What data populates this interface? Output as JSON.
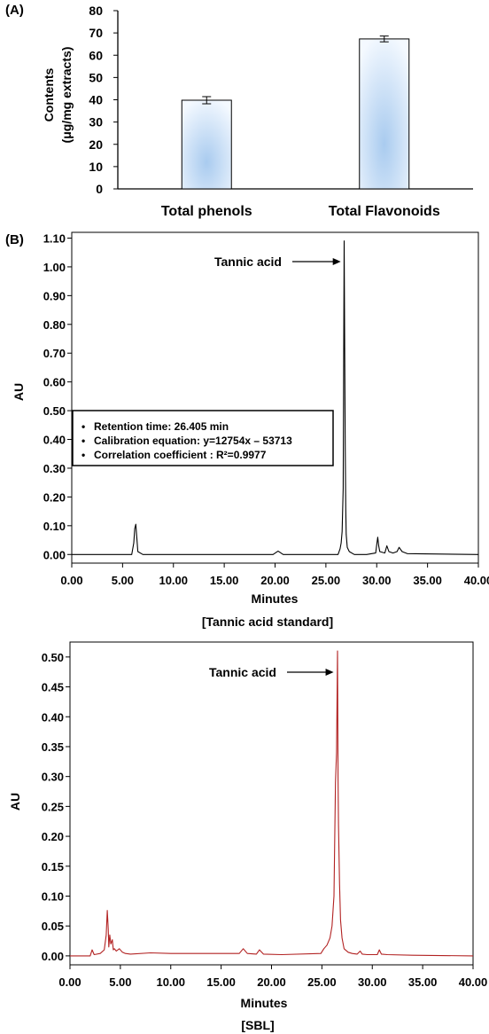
{
  "chart_data": [
    {
      "panel": "(A)",
      "type": "bar",
      "categories": [
        "Total phenols",
        "Total Flavonoids"
      ],
      "values": [
        39.8,
        67.3
      ],
      "errors": [
        1.6,
        1.3
      ],
      "ylabel_line1": "Contents",
      "ylabel_line2": "(μg/mg extracts)",
      "ylim": [
        0,
        80
      ],
      "yticks": [
        "0",
        "10",
        "20",
        "30",
        "40",
        "50",
        "60",
        "70",
        "80"
      ],
      "bar_color": "#cfe2f6",
      "bar_center_color": "#a9cbef"
    },
    {
      "panel": "(B)",
      "type": "line",
      "xlabel": "Minutes",
      "ylabel": "AU",
      "xlim": [
        0,
        40
      ],
      "ylim": [
        -0.03,
        1.12
      ],
      "xticks": [
        "0.00",
        "5.00",
        "10.00",
        "15.00",
        "20.00",
        "25.00",
        "30.00",
        "35.00",
        "40.00"
      ],
      "yticks": [
        "0.00",
        "0.10",
        "0.20",
        "0.30",
        "0.40",
        "0.50",
        "0.60",
        "0.70",
        "0.80",
        "0.90",
        "1.00",
        "1.10"
      ],
      "caption": "[Tannic acid standard]",
      "annotation": "Tannic acid",
      "annotation_x": 26.9,
      "notes": [
        "Retention time: 26.405 min",
        "Calibration equation: y=12754x – 53713",
        "Correlation coefficient : R²=0.9977"
      ],
      "line_color": "#000000",
      "series": [
        {
          "x": [
            0,
            5.9,
            6.1,
            6.2,
            6.3,
            6.4,
            6.5,
            7.0,
            19.8,
            20.3,
            20.8,
            26.2,
            26.4,
            26.5,
            26.6,
            26.7,
            26.75,
            26.8,
            26.85,
            26.9,
            26.95,
            27.0,
            27.1,
            27.3,
            27.8,
            29.0,
            29.9,
            30.0,
            30.1,
            30.2,
            30.3,
            30.8,
            31.0,
            31.2,
            31.6,
            32.0,
            32.2,
            32.5,
            33.0,
            40.0
          ],
          "y": [
            0,
            0,
            0.04,
            0.09,
            0.105,
            0.06,
            0.01,
            0,
            0,
            0.012,
            0,
            0,
            0.02,
            0.04,
            0.08,
            0.23,
            0.7,
            1.09,
            0.72,
            0.38,
            0.16,
            0.07,
            0.025,
            0.01,
            0,
            0,
            0.005,
            0.035,
            0.06,
            0.03,
            0.01,
            0.005,
            0.03,
            0.01,
            0.005,
            0.01,
            0.025,
            0.01,
            0.003,
            0
          ]
        }
      ]
    },
    {
      "type": "line",
      "xlabel": "Minutes",
      "ylabel": "AU",
      "xlim": [
        0,
        40
      ],
      "ylim": [
        -0.015,
        0.525
      ],
      "xticks": [
        "0.00",
        "5.00",
        "10.00",
        "15.00",
        "20.00",
        "25.00",
        "30.00",
        "35.00",
        "40.00"
      ],
      "yticks": [
        "0.00",
        "0.05",
        "0.10",
        "0.15",
        "0.20",
        "0.25",
        "0.30",
        "0.35",
        "0.40",
        "0.45",
        "0.50"
      ],
      "caption": "[SBL]",
      "annotation": "Tannic acid",
      "annotation_x": 26.6,
      "line_color": "#b22222",
      "series": [
        {
          "x": [
            0,
            2.0,
            2.2,
            2.4,
            3.0,
            3.4,
            3.6,
            3.7,
            3.8,
            3.85,
            3.95,
            4.05,
            4.2,
            4.3,
            4.4,
            4.6,
            4.9,
            5.2,
            5.5,
            6.0,
            8.0,
            10.0,
            16.8,
            17.2,
            17.6,
            18.5,
            18.8,
            19.2,
            21.0,
            24.9,
            25.2,
            25.5,
            25.8,
            26.0,
            26.2,
            26.35,
            26.45,
            26.55,
            26.6,
            26.65,
            26.75,
            26.85,
            27.0,
            27.2,
            27.6,
            28.0,
            28.5,
            28.8,
            29.0,
            29.5,
            30.5,
            30.7,
            30.9,
            31.5,
            34.0,
            40.0
          ],
          "y": [
            0,
            0,
            0.01,
            0.002,
            0.004,
            0.01,
            0.035,
            0.076,
            0.045,
            0.015,
            0.035,
            0.02,
            0.027,
            0.01,
            0.012,
            0.008,
            0.012,
            0.006,
            0.004,
            0.003,
            0.005,
            0.004,
            0.004,
            0.012,
            0.004,
            0.003,
            0.01,
            0.003,
            0.002,
            0.004,
            0.012,
            0.018,
            0.03,
            0.05,
            0.1,
            0.29,
            0.34,
            0.51,
            0.3,
            0.22,
            0.12,
            0.06,
            0.03,
            0.012,
            0.006,
            0.004,
            0.003,
            0.008,
            0.003,
            0.002,
            0.002,
            0.01,
            0.003,
            0.002,
            0.001,
            0
          ]
        }
      ]
    }
  ]
}
